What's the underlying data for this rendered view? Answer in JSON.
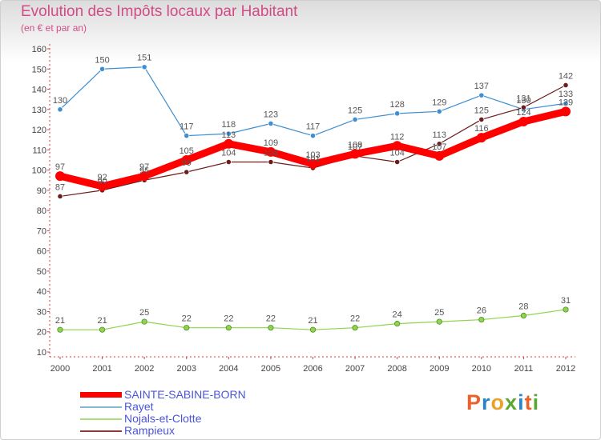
{
  "header": {
    "title": "Evolution des Impôts locaux par Habitant",
    "subtitle": "(en € et par an)"
  },
  "chart_data": {
    "type": "line",
    "title": "Evolution des Impôts locaux par Habitant",
    "subtitle": "(en € et par an)",
    "xlabel": "",
    "ylabel": "",
    "ylim": [
      10,
      160
    ],
    "yticks": [
      "10",
      "20",
      "30",
      "40",
      "50",
      "60",
      "70",
      "80",
      "90",
      "100",
      "110",
      "120",
      "130",
      "140",
      "150",
      "160"
    ],
    "grid": false,
    "legend_position": "bottom-left",
    "categories": [
      "2000",
      "2001",
      "2002",
      "2003",
      "2004",
      "2005",
      "2006",
      "2007",
      "2008",
      "2009",
      "2010",
      "2011",
      "2012"
    ],
    "series": [
      {
        "name": "SAINTE-SABINE-BORN",
        "color": "#ff0000",
        "values": [
          97,
          92,
          97,
          105,
          113,
          109,
          103,
          108,
          112,
          107,
          116,
          124,
          129
        ]
      },
      {
        "name": "Rayet",
        "color": "#3d8fd1",
        "values": [
          130,
          150,
          151,
          117,
          118,
          123,
          117,
          125,
          128,
          129,
          137,
          130,
          133
        ]
      },
      {
        "name": "Nojals-et-Clotte",
        "color": "#8ed44c",
        "values": [
          21,
          21,
          25,
          22,
          22,
          22,
          21,
          22,
          24,
          25,
          26,
          28,
          31
        ]
      },
      {
        "name": "Rampieux",
        "color": "#6b1c1c",
        "values": [
          87,
          90,
          95,
          99,
          104,
          104,
          101,
          107,
          104,
          113,
          125,
          131,
          142
        ]
      }
    ]
  },
  "legend": {
    "items": [
      {
        "label": "SAINTE-SABINE-BORN",
        "color": "#ff0000"
      },
      {
        "label": "Rayet",
        "color": "#8ab4d8"
      },
      {
        "label": "Nojals-et-Clotte",
        "color": "#a9df7a"
      },
      {
        "label": "Rampieux",
        "color": "#8b3a3a"
      }
    ]
  },
  "brand": {
    "logo_text": "Proxiti",
    "letter_colors": [
      "#e8632b",
      "#2b83c9",
      "#e8a32b",
      "#5aa832",
      "#2b83c9",
      "#e8632b",
      "#5aa832"
    ]
  }
}
